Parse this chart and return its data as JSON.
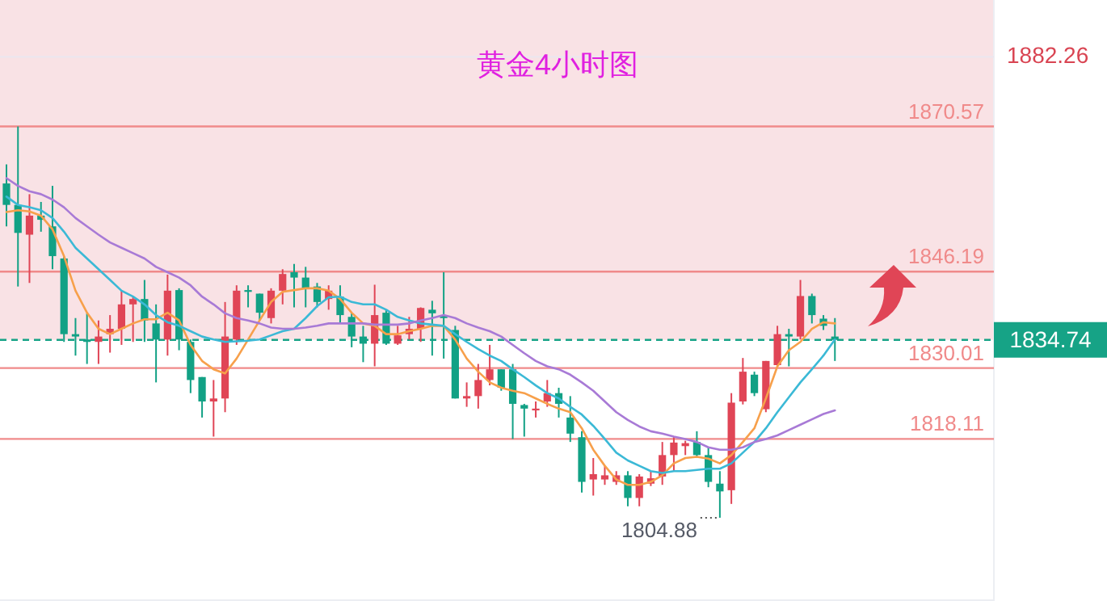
{
  "chart_data": {
    "type": "candlestick",
    "title": "黄金4小时图",
    "categories": [
      null,
      null,
      null,
      null,
      null,
      null,
      null,
      null,
      null,
      null,
      null,
      null,
      null,
      null,
      null,
      null,
      null,
      null,
      null,
      null,
      null,
      null,
      null,
      null,
      null,
      null,
      null,
      null,
      null,
      null,
      null,
      null,
      null,
      null,
      null,
      null,
      null,
      null,
      null,
      null,
      null,
      null,
      null,
      null,
      null,
      null,
      null,
      null,
      null,
      null,
      null,
      null,
      null,
      null,
      null,
      null,
      null,
      null,
      null,
      null,
      null,
      null,
      null,
      null,
      null,
      null,
      null,
      null,
      null,
      null,
      null,
      null,
      null
    ],
    "ohlc": [
      [
        1861.0,
        1864.2,
        1853.8,
        1857.4
      ],
      [
        1857.4,
        1870.57,
        1843.7,
        1852.7
      ],
      [
        1852.4,
        1859.2,
        1844.3,
        1855.6
      ],
      [
        1855.6,
        1857.9,
        1852.9,
        1854.9
      ],
      [
        1853.8,
        1860.6,
        1846.6,
        1848.8
      ],
      [
        1848.4,
        1848.8,
        1834.4,
        1835.7
      ],
      [
        1835.7,
        1838.4,
        1832.1,
        1835.3
      ],
      [
        1834.8,
        1839.2,
        1830.7,
        1834.4
      ],
      [
        1834.4,
        1838.0,
        1830.7,
        1835.3
      ],
      [
        1835.7,
        1838.9,
        1832.6,
        1836.6
      ],
      [
        1836.6,
        1843.0,
        1833.9,
        1840.7
      ],
      [
        1840.7,
        1842.0,
        1834.4,
        1841.6
      ],
      [
        1841.6,
        1844.8,
        1834.4,
        1838.0
      ],
      [
        1837.5,
        1840.7,
        1827.6,
        1834.8
      ],
      [
        1834.8,
        1845.7,
        1832.1,
        1843.0
      ],
      [
        1843.1,
        1843.4,
        1833.0,
        1834.8
      ],
      [
        1834.4,
        1834.8,
        1825.8,
        1828.0
      ],
      [
        1828.5,
        1828.5,
        1821.7,
        1824.4
      ],
      [
        1824.4,
        1828.0,
        1818.5,
        1824.9
      ],
      [
        1824.9,
        1841.1,
        1822.6,
        1835.3
      ],
      [
        1834.8,
        1843.9,
        1833.9,
        1843.0
      ],
      [
        1843.1,
        1843.9,
        1840.2,
        1842.8
      ],
      [
        1842.5,
        1842.5,
        1838.0,
        1839.3
      ],
      [
        1838.4,
        1843.4,
        1837.5,
        1843.0
      ],
      [
        1843.0,
        1846.6,
        1840.7,
        1845.8
      ],
      [
        1846.1,
        1847.5,
        1840.2,
        1845.2
      ],
      [
        1845.2,
        1847.0,
        1840.2,
        1843.4
      ],
      [
        1843.7,
        1844.3,
        1840.2,
        1841.1
      ],
      [
        1841.6,
        1843.9,
        1839.8,
        1843.0
      ],
      [
        1842.0,
        1843.9,
        1837.5,
        1838.9
      ],
      [
        1838.6,
        1839.3,
        1833.5,
        1835.3
      ],
      [
        1835.3,
        1837.1,
        1831.0,
        1834.1
      ],
      [
        1834.1,
        1844.0,
        1830.3,
        1838.9
      ],
      [
        1839.3,
        1839.8,
        1833.9,
        1834.1
      ],
      [
        1834.1,
        1837.1,
        1833.9,
        1835.5
      ],
      [
        1835.7,
        1838.6,
        1834.8,
        1836.6
      ],
      [
        1836.6,
        1840.2,
        1834.4,
        1840.1
      ],
      [
        1839.8,
        1841.3,
        1832.1,
        1839.2
      ],
      [
        1838.9,
        1846.1,
        1831.6,
        1838.4
      ],
      [
        1836.4,
        1837.1,
        1824.9,
        1824.9
      ],
      [
        1824.9,
        1827.6,
        1823.5,
        1825.3
      ],
      [
        1825.3,
        1830.7,
        1823.2,
        1828.0
      ],
      [
        1828.0,
        1833.9,
        1827.1,
        1829.8
      ],
      [
        1829.8,
        1829.8,
        1826.2,
        1826.7
      ],
      [
        1829.8,
        1830.7,
        1818.1,
        1824.0
      ],
      [
        1823.8,
        1824.0,
        1818.5,
        1823.2
      ],
      [
        1822.9,
        1824.4,
        1821.7,
        1823.2
      ],
      [
        1824.4,
        1828.0,
        1823.5,
        1825.8
      ],
      [
        1825.8,
        1826.7,
        1821.7,
        1824.0
      ],
      [
        1821.7,
        1825.3,
        1817.6,
        1819.0
      ],
      [
        1818.4,
        1819.4,
        1809.1,
        1810.9
      ],
      [
        1811.3,
        1814.9,
        1808.6,
        1812.2
      ],
      [
        1811.3,
        1813.6,
        1810.4,
        1812.0
      ],
      [
        1810.9,
        1812.7,
        1810.4,
        1812.0
      ],
      [
        1812.0,
        1812.7,
        1806.8,
        1808.2
      ],
      [
        1808.2,
        1812.2,
        1806.8,
        1811.8
      ],
      [
        1810.6,
        1812.7,
        1810.2,
        1811.5
      ],
      [
        1811.8,
        1817.6,
        1810.4,
        1815.4
      ],
      [
        1815.4,
        1818.5,
        1812.7,
        1817.5
      ],
      [
        1816.9,
        1817.8,
        1815.4,
        1817.4
      ],
      [
        1817.6,
        1819.4,
        1814.9,
        1815.4
      ],
      [
        1815.4,
        1816.7,
        1810.0,
        1810.9
      ],
      [
        1810.6,
        1812.7,
        1804.88,
        1809.3
      ],
      [
        1809.5,
        1825.8,
        1807.2,
        1824.2
      ],
      [
        1824.4,
        1831.7,
        1823.9,
        1829.4
      ],
      [
        1828.9,
        1829.4,
        1825.3,
        1825.8
      ],
      [
        1823.1,
        1831.2,
        1822.6,
        1831.2
      ],
      [
        1830.5,
        1837.1,
        1830.1,
        1835.7
      ],
      [
        1835.7,
        1836.6,
        1830.3,
        1835.3
      ],
      [
        1835.3,
        1844.8,
        1834.8,
        1842.1
      ],
      [
        1842.1,
        1842.5,
        1837.5,
        1838.9
      ],
      [
        1838.3,
        1838.9,
        1836.4,
        1837.1
      ],
      [
        1835.3,
        1838.4,
        1831.2,
        1834.74
      ]
    ],
    "series": [
      {
        "type": "line",
        "color": "#f7a04b",
        "values": [
          1856.2,
          1856.5,
          1856.3,
          1855.6,
          1853.3,
          1848.8,
          1843.0,
          1839.3,
          1836.6,
          1835.7,
          1836.6,
          1837.5,
          1838.2,
          1838.2,
          1839.3,
          1838.0,
          1833.9,
          1831.2,
          1829.8,
          1829.1,
          1831.6,
          1834.8,
          1838.0,
          1841.1,
          1842.8,
          1843.1,
          1843.4,
          1843.4,
          1843.0,
          1841.6,
          1839.3,
          1837.5,
          1837.1,
          1835.7,
          1835.7,
          1836.2,
          1836.6,
          1837.1,
          1837.1,
          1834.8,
          1831.6,
          1829.4,
          1827.6,
          1826.7,
          1826.2,
          1825.8,
          1824.9,
          1824.0,
          1823.2,
          1822.6,
          1819.9,
          1816.3,
          1813.6,
          1811.3,
          1810.4,
          1810.4,
          1810.9,
          1812.0,
          1814.0,
          1814.9,
          1815.1,
          1814.8,
          1814.0,
          1815.4,
          1817.6,
          1819.9,
          1824.9,
          1830.3,
          1833.0,
          1834.4,
          1836.6,
          1837.7,
          1837.5
        ]
      },
      {
        "type": "line",
        "color": "#3bb9d6",
        "values": [
          1858.8,
          1857.4,
          1857.0,
          1856.5,
          1855.2,
          1852.9,
          1850.2,
          1848.4,
          1846.6,
          1844.8,
          1843.0,
          1842.0,
          1840.7,
          1838.9,
          1837.7,
          1837.1,
          1836.2,
          1835.3,
          1834.8,
          1834.4,
          1834.5,
          1834.6,
          1834.8,
          1835.5,
          1836.2,
          1836.6,
          1838.4,
          1840.4,
          1841.9,
          1842.0,
          1841.1,
          1840.7,
          1840.7,
          1839.8,
          1838.6,
          1838.0,
          1837.5,
          1837.3,
          1837.1,
          1835.7,
          1834.4,
          1833.2,
          1832.1,
          1831.2,
          1829.8,
          1828.5,
          1827.1,
          1825.8,
          1824.9,
          1823.5,
          1822.2,
          1820.3,
          1818.1,
          1815.8,
          1814.5,
          1813.6,
          1812.7,
          1812.4,
          1812.7,
          1812.7,
          1812.9,
          1813.1,
          1813.1,
          1814.0,
          1815.8,
          1817.6,
          1819.9,
          1822.6,
          1825.1,
          1827.6,
          1829.8,
          1832.1,
          1834.8
        ]
      },
      {
        "type": "line",
        "color": "#a87ad6",
        "values": [
          1861.9,
          1860.6,
          1859.7,
          1859.2,
          1858.3,
          1857.0,
          1855.2,
          1853.8,
          1852.4,
          1851.1,
          1850.2,
          1849.3,
          1848.4,
          1847.0,
          1846.1,
          1845.2,
          1843.9,
          1842.0,
          1840.7,
          1839.2,
          1838.4,
          1838.0,
          1837.5,
          1836.8,
          1836.6,
          1836.6,
          1836.8,
          1837.1,
          1837.5,
          1837.5,
          1837.5,
          1837.5,
          1837.3,
          1837.3,
          1837.3,
          1837.5,
          1838.0,
          1838.4,
          1838.9,
          1838.4,
          1837.5,
          1836.8,
          1836.2,
          1835.3,
          1833.9,
          1832.5,
          1831.2,
          1830.3,
          1829.8,
          1828.9,
          1827.6,
          1826.2,
          1824.4,
          1822.6,
          1821.3,
          1820.2,
          1819.4,
          1819.0,
          1818.5,
          1818.1,
          1817.6,
          1816.7,
          1816.3,
          1816.3,
          1816.7,
          1817.6,
          1818.1,
          1818.7,
          1819.6,
          1820.5,
          1821.4,
          1822.3,
          1822.9
        ]
      }
    ],
    "ylim": [
      1790.9,
      1891.8
    ],
    "ref_lines": [
      {
        "axis": "y",
        "value": 1882.26,
        "label": "1882.26",
        "color": "#ece6ee"
      },
      {
        "axis": "y",
        "value": 1870.57,
        "label": "1870.57",
        "color": "#f08a8a"
      },
      {
        "axis": "y",
        "value": 1846.19,
        "label": "1846.19",
        "color": "#f08a8a"
      },
      {
        "axis": "y",
        "value": 1830.01,
        "label": "1830.01",
        "color": "#f08a8a"
      },
      {
        "axis": "y",
        "value": 1818.11,
        "label": "1818.11",
        "color": "#f08a8a"
      },
      {
        "axis": "y",
        "value": 1834.74,
        "label": "1834.74",
        "color": "#16a386",
        "line_style": "dashed"
      }
    ],
    "bands": [
      {
        "axis": "y",
        "from": 1834.74,
        "to": 1891.8,
        "color": "#f9e2e5"
      }
    ],
    "annotations": [
      "1804.88"
    ]
  }
}
